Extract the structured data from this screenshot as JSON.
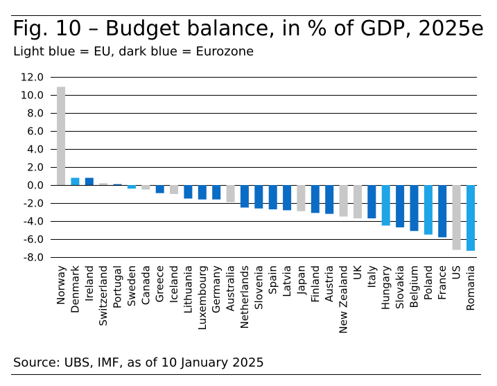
{
  "figure": {
    "title": "Fig. 10 – Budget balance, in % of GDP, 2025e",
    "subtitle": "Light blue = EU, dark blue = Eurozone",
    "source": "Source: UBS, IMF, as of 10 January 2025"
  },
  "colors": {
    "non_eu": "#c8c8c8",
    "eu": "#1ea5e8",
    "eurozone": "#0a6cc4",
    "grid": "#000000"
  },
  "chart_data": {
    "type": "bar",
    "title": "Fig. 10 – Budget balance, in % of GDP, 2025e",
    "subtitle": "Light blue = EU, dark blue = Eurozone",
    "ylim": [
      -8.0,
      12.0
    ],
    "yticks": [
      "12.0",
      "10.0",
      "8.0",
      "6.0",
      "4.0",
      "2.0",
      "0.0",
      "-2.0",
      "-4.0",
      "-6.0",
      "-8.0"
    ],
    "ytick_values": [
      12,
      10,
      8,
      6,
      4,
      2,
      0,
      -2,
      -4,
      -6,
      -8
    ],
    "grid": true,
    "categories": [
      "Norway",
      "Denmark",
      "Ireland",
      "Switzerland",
      "Portugal",
      "Sweden",
      "Canada",
      "Greece",
      "Iceland",
      "Lithuania",
      "Luxembourg",
      "Germany",
      "Australia",
      "Netherlands",
      "Slovenia",
      "Spain",
      "Latvia",
      "Japan",
      "Finland",
      "Austria",
      "New Zealand",
      "UK",
      "Italy",
      "Hungary",
      "Slovakia",
      "Belgium",
      "Poland",
      "France",
      "US",
      "Romania"
    ],
    "values": [
      10.9,
      0.8,
      0.8,
      0.2,
      0.1,
      -0.4,
      -0.5,
      -0.9,
      -1.0,
      -1.5,
      -1.6,
      -1.6,
      -1.9,
      -2.5,
      -2.6,
      -2.7,
      -2.8,
      -2.9,
      -3.1,
      -3.2,
      -3.5,
      -3.7,
      -3.7,
      -4.5,
      -4.7,
      -5.1,
      -5.5,
      -5.8,
      -7.2,
      -7.3
    ],
    "groups": [
      "non_eu",
      "eu",
      "eurozone",
      "non_eu",
      "eurozone",
      "eu",
      "non_eu",
      "eurozone",
      "non_eu",
      "eurozone",
      "eurozone",
      "eurozone",
      "non_eu",
      "eurozone",
      "eurozone",
      "eurozone",
      "eurozone",
      "non_eu",
      "eurozone",
      "eurozone",
      "non_eu",
      "non_eu",
      "eurozone",
      "eu",
      "eurozone",
      "eurozone",
      "eu",
      "eurozone",
      "non_eu",
      "eu"
    ]
  }
}
